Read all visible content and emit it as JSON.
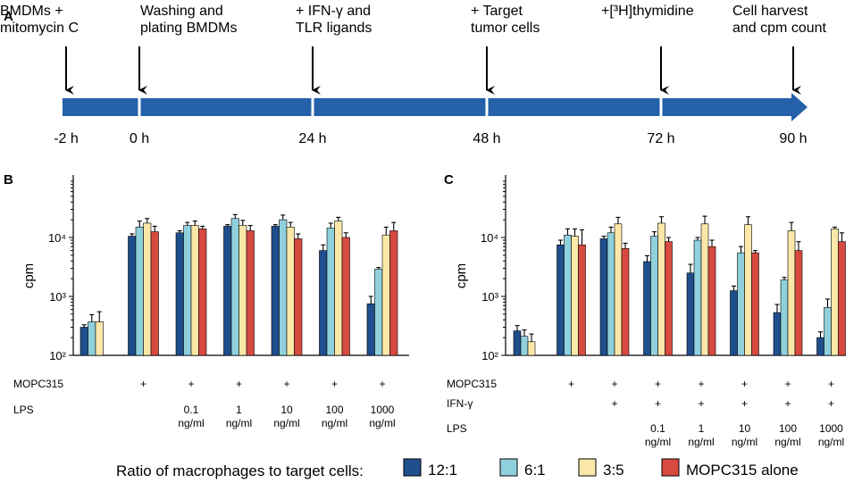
{
  "colors": {
    "c12_1": "#1f4e8c",
    "c6_1": "#8fd0dc",
    "c3_5": "#fbe7a8",
    "alone": "#d64a3f",
    "arrow": "#2461a8"
  },
  "timeline": {
    "panel_label": "A",
    "events": [
      {
        "label": [
          "BMDMs +",
          "mitomycin C"
        ],
        "time": "-2 h"
      },
      {
        "label": [
          "Washing and",
          "plating BMDMs"
        ],
        "time": "0 h"
      },
      {
        "label": [
          "+ IFN-γ and",
          "TLR ligands"
        ],
        "time": "24 h"
      },
      {
        "label": [
          "+ Target",
          "tumor cells"
        ],
        "time": "48 h"
      },
      {
        "label": [
          "+[³H]thymidine"
        ],
        "time": "72 h"
      },
      {
        "label": [
          "Cell harvest",
          "and cpm count"
        ],
        "time": "90 h"
      }
    ]
  },
  "legend": {
    "title": "Ratio of macrophages to target cells:",
    "items": [
      {
        "label": "12:1",
        "color": "#1f4e8c"
      },
      {
        "label": "6:1",
        "color": "#8fd0dc"
      },
      {
        "label": "3:5",
        "color": "#fbe7a8"
      },
      {
        "label": "MOPC315 alone",
        "color": "#d64a3f"
      }
    ]
  },
  "chart_data": [
    {
      "type": "bar",
      "panel_label": "B",
      "ylabel": "cpm",
      "yscale": "log",
      "ylim": [
        100,
        100000
      ],
      "yticks": [
        "10²",
        "10³",
        "10⁴"
      ],
      "series_names": [
        "12:1",
        "6:1",
        "3:5",
        "MOPC315 alone"
      ],
      "row_labels": [
        "MOPC315",
        "LPS"
      ],
      "groups": [
        {
          "rows": [
            "",
            ""
          ],
          "values": [
            300,
            370,
            370,
            null
          ],
          "errors": [
            30,
            120,
            180,
            null
          ]
        },
        {
          "rows": [
            "+",
            ""
          ],
          "values": [
            10500,
            15000,
            17500,
            12500
          ],
          "errors": [
            1000,
            4000,
            3500,
            3000
          ]
        },
        {
          "rows": [
            "+",
            "0.1\nng/ml"
          ],
          "values": [
            12000,
            16000,
            16000,
            14000
          ],
          "errors": [
            1000,
            2000,
            3000,
            1500
          ]
        },
        {
          "rows": [
            "+",
            "1\nng/ml"
          ],
          "values": [
            15500,
            21000,
            16000,
            13000
          ],
          "errors": [
            1000,
            3500,
            3500,
            3000
          ]
        },
        {
          "rows": [
            "+",
            "10\nng/ml"
          ],
          "values": [
            15500,
            20000,
            15000,
            9500
          ],
          "errors": [
            1000,
            4000,
            3000,
            2000
          ]
        },
        {
          "rows": [
            "+",
            "100\nng/ml"
          ],
          "values": [
            6000,
            14500,
            19000,
            10000
          ],
          "errors": [
            1500,
            3000,
            3000,
            2000
          ]
        },
        {
          "rows": [
            "+",
            "1000\nng/ml"
          ],
          "values": [
            750,
            2900,
            11000,
            13000
          ],
          "errors": [
            250,
            200,
            4000,
            5000
          ]
        }
      ]
    },
    {
      "type": "bar",
      "panel_label": "C",
      "ylabel": "cpm",
      "yscale": "log",
      "ylim": [
        100,
        100000
      ],
      "yticks": [
        "10²",
        "10³",
        "10⁴"
      ],
      "series_names": [
        "12:1",
        "6:1",
        "3:5",
        "MOPC315 alone"
      ],
      "row_labels": [
        "MOPC315",
        "IFN-γ",
        "LPS"
      ],
      "groups": [
        {
          "rows": [
            "",
            "",
            ""
          ],
          "values": [
            260,
            210,
            170,
            null
          ],
          "errors": [
            60,
            60,
            60,
            null
          ]
        },
        {
          "rows": [
            "+",
            "",
            ""
          ],
          "values": [
            7500,
            11000,
            10500,
            7500
          ],
          "errors": [
            1500,
            3000,
            3500,
            6000
          ]
        },
        {
          "rows": [
            "+",
            "+",
            ""
          ],
          "values": [
            9500,
            12000,
            17000,
            6500
          ],
          "errors": [
            1000,
            3000,
            5000,
            1500
          ]
        },
        {
          "rows": [
            "+",
            "+",
            "0.1\nng/ml"
          ],
          "values": [
            3900,
            10500,
            17500,
            8500
          ],
          "errors": [
            1000,
            2000,
            5000,
            1500
          ]
        },
        {
          "rows": [
            "+",
            "+",
            "1\nng/ml"
          ],
          "values": [
            2500,
            9000,
            17000,
            7000
          ],
          "errors": [
            1000,
            1000,
            6000,
            2000
          ]
        },
        {
          "rows": [
            "+",
            "+",
            "10\nng/ml"
          ],
          "values": [
            1250,
            5500,
            16500,
            5500
          ],
          "errors": [
            250,
            1500,
            6000,
            500
          ]
        },
        {
          "rows": [
            "+",
            "+",
            "100\nng/ml"
          ],
          "values": [
            530,
            1900,
            13000,
            6000
          ],
          "errors": [
            200,
            200,
            5000,
            2500
          ]
        },
        {
          "rows": [
            "+",
            "+",
            "1000\nng/ml"
          ],
          "values": [
            200,
            650,
            14000,
            8500
          ],
          "errors": [
            50,
            250,
            1000,
            3500
          ]
        }
      ]
    }
  ]
}
